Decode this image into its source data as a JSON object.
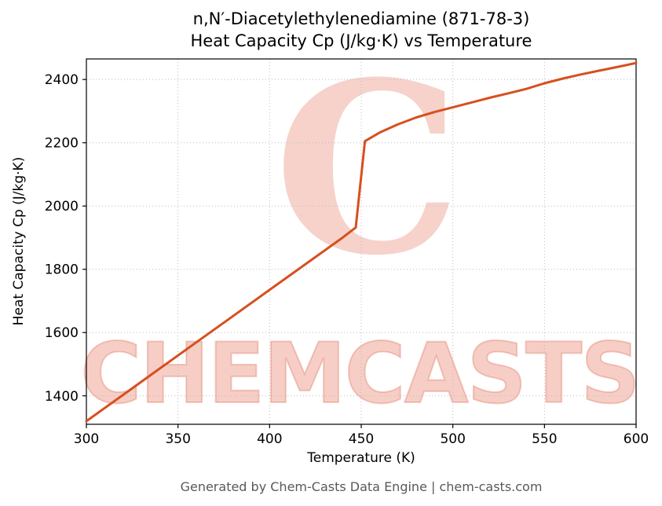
{
  "title_line1": "n,N′-Diacetylethylenediamine (871-78-3)",
  "title_line2": "Heat Capacity Cp (J/kg·K) vs Temperature",
  "footer": "Generated by Chem-Casts Data Engine | chem-casts.com",
  "watermark": {
    "text": "CHEMCASTS",
    "logo_glyph": "C",
    "color": "#e05d42"
  },
  "chart_data": {
    "type": "line",
    "title": "n,N′-Diacetylethylenediamine (871-78-3) Heat Capacity Cp (J/kg·K) vs Temperature",
    "xlabel": "Temperature (K)",
    "ylabel": "Heat Capacity Cp (J/kg·K)",
    "xlim": [
      300,
      600
    ],
    "ylim": [
      1310,
      2465
    ],
    "x_ticks": [
      300,
      350,
      400,
      450,
      500,
      550,
      600
    ],
    "y_ticks": [
      1400,
      1600,
      1800,
      2000,
      2200,
      2400
    ],
    "grid": true,
    "grid_style": "dotted",
    "legend": "none",
    "line_color": "#d6501e",
    "line_width": 3,
    "series": [
      {
        "name": "Heat Capacity Cp",
        "x": [
          300,
          320,
          340,
          360,
          380,
          400,
          420,
          440,
          447,
          452,
          460,
          470,
          480,
          490,
          500,
          510,
          520,
          530,
          540,
          550,
          560,
          570,
          580,
          590,
          600
        ],
        "y": [
          1320,
          1403,
          1486,
          1569,
          1652,
          1735,
          1818,
          1901,
          1932,
          2205,
          2232,
          2258,
          2280,
          2297,
          2312,
          2327,
          2342,
          2356,
          2370,
          2388,
          2403,
          2416,
          2428,
          2440,
          2452
        ]
      }
    ]
  }
}
